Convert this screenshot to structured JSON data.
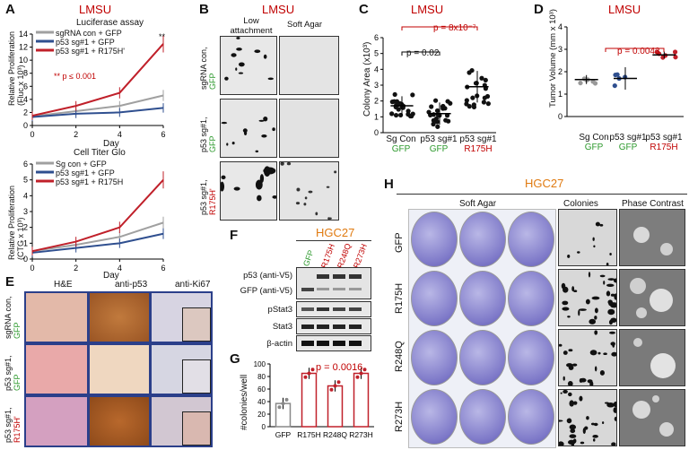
{
  "panel_labels": {
    "A": "A",
    "B": "B",
    "C": "C",
    "D": "D",
    "E": "E",
    "F": "F",
    "G": "G",
    "H": "H"
  },
  "A": {
    "title": "LMSU",
    "top": {
      "title": "Luciferase assay",
      "ylabel": "Relative Proliferation",
      "ylabel2": "(Fluc x 10³)",
      "xlabel": "Day",
      "sig": "**",
      "sig_note": "** p ≤ 0.001",
      "legend": [
        "sgRNA con + GFP",
        "p53 sg#1 + GFP",
        "p53 sg#1 + R175H'"
      ]
    },
    "bottom": {
      "title": "Cell Titer Glo",
      "ylabel": "Relative Proliferation",
      "ylabel2": "(CTG x 10³)",
      "xlabel": "Day",
      "legend": [
        "Sg con + GFP",
        "p53 sg#1 + GFP",
        "p53 sg#1 + R175H"
      ]
    }
  },
  "chart_data": [
    {
      "type": "line",
      "title": "Luciferase assay",
      "xlabel": "Day",
      "ylabel": "Relative Proliferation (Fluc x 10³)",
      "x": [
        0,
        2,
        4,
        6
      ],
      "xlim": [
        0,
        6
      ],
      "ylim": [
        0,
        14
      ],
      "yticks": [
        0,
        2,
        4,
        6,
        8,
        10,
        12,
        14
      ],
      "series": [
        {
          "name": "sgRNA con + GFP",
          "color": "#a0a0a0",
          "values": [
            1.4,
            2.2,
            3.0,
            4.6
          ]
        },
        {
          "name": "p53 sg#1 + GFP",
          "color": "#2f4f8f",
          "values": [
            1.3,
            1.8,
            2.0,
            2.7
          ]
        },
        {
          "name": "p53 sg#1 + R175H'",
          "color": "#c0202a",
          "values": [
            1.5,
            3.0,
            5.0,
            12.5
          ]
        }
      ]
    },
    {
      "type": "line",
      "title": "Cell Titer Glo",
      "xlabel": "Day",
      "ylabel": "Relative Proliferation (CTG x 10³)",
      "x": [
        0,
        2,
        4,
        6
      ],
      "xlim": [
        0,
        6
      ],
      "ylim": [
        0,
        6
      ],
      "yticks": [
        0,
        1,
        2,
        3,
        4,
        5,
        6
      ],
      "series": [
        {
          "name": "Sg con + GFP",
          "color": "#a0a0a0",
          "values": [
            0.5,
            0.9,
            1.4,
            2.3
          ]
        },
        {
          "name": "p53 sg#1 + GFP",
          "color": "#2f4f8f",
          "values": [
            0.4,
            0.7,
            1.0,
            1.6
          ]
        },
        {
          "name": "p53 sg#1 + R175H",
          "color": "#c0202a",
          "values": [
            0.5,
            1.1,
            2.0,
            5.0
          ]
        }
      ]
    },
    {
      "type": "scatter",
      "title": "LMSU",
      "ylabel": "Colony Area (x10³)",
      "ylim": [
        0,
        6
      ],
      "yticks": [
        0,
        1,
        2,
        3,
        4,
        5,
        6
      ],
      "categories": [
        "Sg Con GFP",
        "p53 sg#1 GFP",
        "p53 sg#1 R175H"
      ],
      "means": [
        1.7,
        1.2,
        2.9
      ],
      "sd": [
        0.6,
        0.7,
        1.0
      ],
      "annotations": [
        "p = 0.02",
        "p = 8x10⁻⁷"
      ]
    },
    {
      "type": "scatter",
      "title": "LMSU",
      "ylabel": "Tumor Volume (mm x 10³)",
      "ylim": [
        0,
        4
      ],
      "yticks": [
        0,
        1,
        2,
        3,
        4
      ],
      "categories": [
        "Sg Con GFP",
        "p53 sg#1 GFP",
        "p53 sg#1 R175H"
      ],
      "means": [
        1.65,
        1.7,
        2.75
      ],
      "sd": [
        0.2,
        0.5,
        0.15
      ],
      "annotations": [
        "p = 0.0043"
      ]
    },
    {
      "type": "bar",
      "ylabel": "#colonies/well",
      "ylim": [
        0,
        100
      ],
      "yticks": [
        0,
        20,
        40,
        60,
        80,
        100
      ],
      "categories": [
        "GFP",
        "R175H",
        "R248Q",
        "R273H"
      ],
      "values": [
        37,
        85,
        65,
        85
      ],
      "annotations": [
        "p = 0.0016"
      ]
    }
  ],
  "B": {
    "title": "LMSU",
    "col1": "Low attachment",
    "col2": "Soft Agar",
    "rows": [
      {
        "a": "sgRNA con,",
        "b": "GFP"
      },
      {
        "a": "p53 sg#1,",
        "b": "GFP"
      },
      {
        "a": "p53 sg#1,",
        "b": "R175H'"
      }
    ]
  },
  "C": {
    "title": "LMSU",
    "ylabel": "Colony Area (x10³)",
    "p1": "p = 0.02",
    "p2": "p = 8x10⁻⁷",
    "cats": [
      {
        "a": "Sg Con",
        "b": "GFP"
      },
      {
        "a": "p53 sg#1",
        "b": "GFP"
      },
      {
        "a": "p53 sg#1",
        "b": "R175H"
      }
    ]
  },
  "D": {
    "title": "LMSU",
    "ylabel": "Tumor Volume (mm x 10³)",
    "p1": "p = 0.0043",
    "cats": [
      {
        "a": "Sg Con",
        "b": "GFP"
      },
      {
        "a": "p53 sg#1",
        "b": "GFP"
      },
      {
        "a": "p53 sg#1",
        "b": "R175H"
      }
    ]
  },
  "E": {
    "cols": [
      "H&E",
      "anti-p53",
      "anti-Ki67"
    ],
    "rows": [
      {
        "a": "sgRNA con,",
        "b": "GFP"
      },
      {
        "a": "p53 sg#1,",
        "b": "GFP"
      },
      {
        "a": "p53 sg#1,",
        "b": "R175H'"
      }
    ]
  },
  "F": {
    "title": "HGC27",
    "lanes": [
      "GFP",
      "R175H",
      "R248Q",
      "R273H"
    ],
    "rows": [
      "p53 (anti-V5)",
      "GFP (anti-V5)",
      "pStat3",
      "Stat3",
      "β-actin"
    ]
  },
  "G": {
    "ylabel": "#colonies/well",
    "p": "p = 0.0016",
    "cats": [
      "GFP",
      "R175H",
      "R248Q",
      "R273H"
    ]
  },
  "H": {
    "title": "HGC27",
    "col1": "Soft Agar",
    "col2": "Colonies",
    "col3": "Phase Contrast",
    "rows": [
      "GFP",
      "R175H",
      "R248Q",
      "R273H"
    ]
  }
}
